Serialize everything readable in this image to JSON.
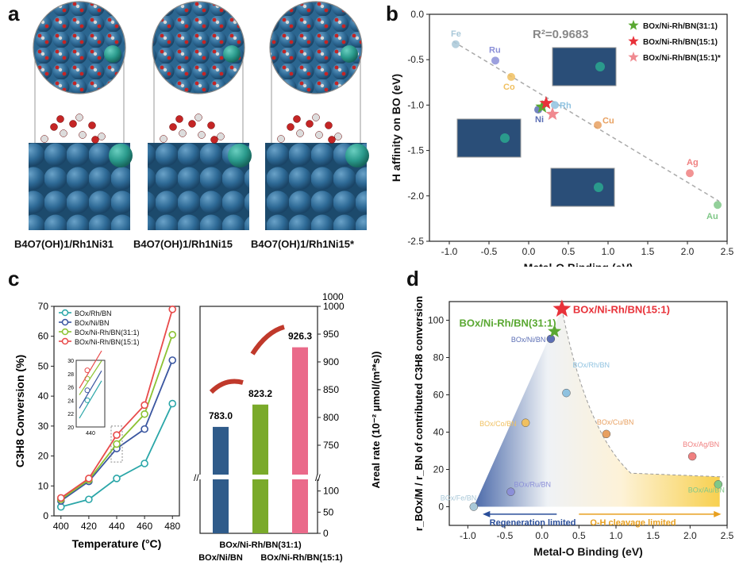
{
  "labels": {
    "a": "a",
    "b": "b",
    "c": "c",
    "d": "d"
  },
  "panel_a": {
    "structures": [
      {
        "caption": "B4O7(OH)1/Rh1Ni31"
      },
      {
        "caption": "B4O7(OH)1/Rh1Ni15"
      },
      {
        "caption": "B4O7(OH)1/Rh1Ni15*"
      }
    ]
  },
  "panel_b": {
    "chart_data": {
      "type": "scatter",
      "xlabel": "Metal-O Binding (eV)",
      "ylabel": "H affinity on BO (eV)",
      "xlim": [
        -1.25,
        2.5
      ],
      "ylim": [
        -2.5,
        0
      ],
      "xticks": [
        "-1.0",
        "-0.5",
        "0.0",
        "0.5",
        "1.0",
        "1.5",
        "2.0",
        "2.5"
      ],
      "yticks": [
        "0.0",
        "-0.5",
        "-1.0",
        "-1.5",
        "-2.0",
        "-2.5"
      ],
      "annotation": "R²=0.9683",
      "points": [
        {
          "label": "Fe",
          "x": -0.92,
          "y": -0.33,
          "color": "#a9c8d8"
        },
        {
          "label": "Ru",
          "x": -0.42,
          "y": -0.51,
          "color": "#8b8fd8"
        },
        {
          "label": "Co",
          "x": -0.22,
          "y": -0.69,
          "color": "#f0c060"
        },
        {
          "label": "Rh",
          "x": 0.33,
          "y": -1.0,
          "color": "#8fc2e0"
        },
        {
          "label": "Ni",
          "x": 0.12,
          "y": -1.05,
          "color": "#5c6fb5"
        },
        {
          "label": "Cu",
          "x": 0.87,
          "y": -1.22,
          "color": "#e8a060"
        },
        {
          "label": "Ag",
          "x": 2.03,
          "y": -1.75,
          "color": "#f08080"
        },
        {
          "label": "Au",
          "x": 2.38,
          "y": -2.1,
          "color": "#80c888"
        }
      ],
      "stars": [
        {
          "label": "BOx/Ni-Rh/BN(31:1)",
          "x": 0.17,
          "y": -1.02,
          "color": "#5aa832"
        },
        {
          "label": "BOx/Ni-Rh/BN(15:1)",
          "x": 0.22,
          "y": -0.98,
          "color": "#e8323a"
        },
        {
          "label": "BOx/Ni-Rh/BN(15:1)*",
          "x": 0.3,
          "y": -1.1,
          "color": "#f08a90"
        }
      ],
      "fit": {
        "x": [
          -0.95,
          2.4
        ],
        "y": [
          -0.3,
          -2.06
        ]
      }
    }
  },
  "panel_c": {
    "chart_data": [
      {
        "type": "line",
        "xlabel": "Temperature (°C)",
        "ylabel": "C3H8 Conversion (%)",
        "x": [
          400,
          420,
          440,
          460,
          480
        ],
        "xlim": [
          395,
          485
        ],
        "ylim": [
          0,
          70
        ],
        "xticks": [
          "400",
          "420",
          "440",
          "460",
          "480"
        ],
        "yticks": [
          "0",
          "10",
          "20",
          "30",
          "40",
          "50",
          "60",
          "70"
        ],
        "series": [
          {
            "name": "BOx/Rh/BN",
            "color": "#2aa6a8",
            "values": [
              3,
              5.5,
              12.5,
              17.5,
              37.5
            ]
          },
          {
            "name": "BOx/Ni/BN",
            "color": "#3a56a0",
            "values": [
              5,
              11.5,
              22.5,
              29,
              52
            ]
          },
          {
            "name": "BOx/Ni-Rh/BN(31:1)",
            "color": "#8cc232",
            "values": [
              5.5,
              12,
              24,
              34,
              60.5
            ]
          },
          {
            "name": "BOx/Ni-Rh/BN(15:1)",
            "color": "#e84a4a",
            "values": [
              6,
              12.5,
              27,
              37,
              69
            ]
          }
        ],
        "inset": {
          "xlabel": "440",
          "yticks": [
            "20",
            "22",
            "24",
            "26",
            "28",
            "30"
          ]
        }
      },
      {
        "type": "bar",
        "ylabel": "Areal rate (10⁻² μmol/(m²*s))",
        "categories": [
          "BOx/Ni/BN",
          "BOx/Ni-Rh/BN(31:1)",
          "BOx/Ni-Rh/BN(15:1)"
        ],
        "values": [
          783.0,
          823.2,
          926.3
        ],
        "value_labels": [
          "783.0",
          "823.2",
          "926.3"
        ],
        "colors": [
          "#2f5b8a",
          "#7aaa2a",
          "#ea6a8a"
        ],
        "ylim_upper": [
          700,
          1000
        ],
        "yticks_upper": [
          "750",
          "800",
          "850",
          "900",
          "950",
          "1000"
        ],
        "yticks_lower": [
          "0",
          "50",
          "100"
        ]
      }
    ]
  },
  "panel_d": {
    "chart_data": {
      "type": "scatter",
      "xlabel": "Metal-O Binding (eV)",
      "ylabel": "r_BOx/M / r_BN of contributed C3H8 conversion",
      "xlim": [
        -1.25,
        2.5
      ],
      "ylim": [
        -10,
        110
      ],
      "xticks": [
        "-1.0",
        "-0.5",
        "0.0",
        "0.5",
        "1.0",
        "1.5",
        "2.0",
        "2.5"
      ],
      "yticks": [
        "0",
        "20",
        "40",
        "60",
        "80",
        "100"
      ],
      "points": [
        {
          "label": "BOx/Fe/BN",
          "x": -0.92,
          "y": 0,
          "color": "#a9c8d8"
        },
        {
          "label": "BOx/Ru/BN",
          "x": -0.42,
          "y": 8,
          "color": "#8b8fd8"
        },
        {
          "label": "BOx/Ni/BN",
          "x": 0.12,
          "y": 90,
          "color": "#5c6fb5"
        },
        {
          "label": "BOx/Co/BN",
          "x": -0.22,
          "y": 45,
          "color": "#f0c060"
        },
        {
          "label": "BOx/Rh/BN",
          "x": 0.33,
          "y": 61,
          "color": "#8fc2e0"
        },
        {
          "label": "BOx/Cu/BN",
          "x": 0.87,
          "y": 39,
          "color": "#e8a060"
        },
        {
          "label": "BOx/Ag/BN",
          "x": 2.03,
          "y": 27,
          "color": "#f08080"
        },
        {
          "label": "BOx/Au/BN",
          "x": 2.38,
          "y": 12,
          "color": "#80c888"
        }
      ],
      "stars": [
        {
          "label": "BOx/Ni-Rh/BN(31:1)",
          "x": 0.17,
          "y": 94,
          "color": "#5aa832"
        },
        {
          "label": "BOx/Ni-Rh/BN(15:1)",
          "x": 0.27,
          "y": 106,
          "color": "#e8323a"
        }
      ],
      "annotations": {
        "left": "Regeneration limited",
        "right": "O-H cleavage limited"
      }
    }
  }
}
